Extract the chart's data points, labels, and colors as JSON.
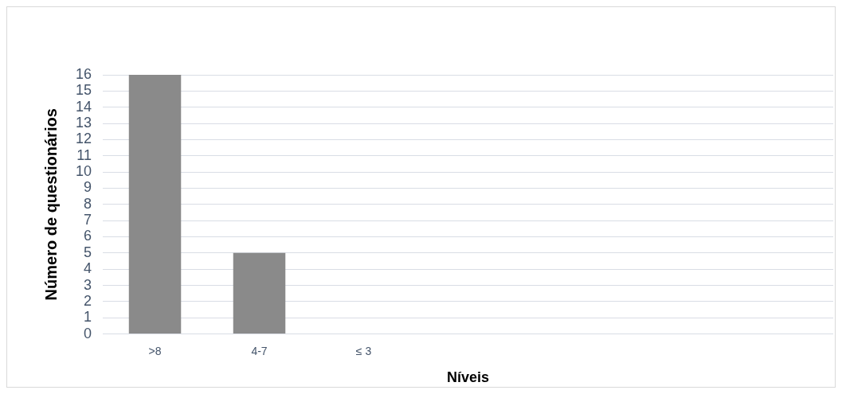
{
  "chart_data": {
    "type": "bar",
    "xlabel": "Níveis",
    "ylabel": "Número de questionários",
    "categories": [
      ">8",
      "4-7",
      "≤ 3",
      null,
      null,
      null,
      null
    ],
    "values": [
      16,
      5,
      0,
      null,
      null,
      null,
      null
    ],
    "color": "#8a8a8a",
    "ylim": [
      0,
      16
    ],
    "yticks": [
      0,
      1,
      2,
      3,
      4,
      5,
      6,
      7,
      8,
      9,
      10,
      11,
      12,
      13,
      14,
      15,
      16
    ],
    "grid": "y",
    "legend": false
  }
}
